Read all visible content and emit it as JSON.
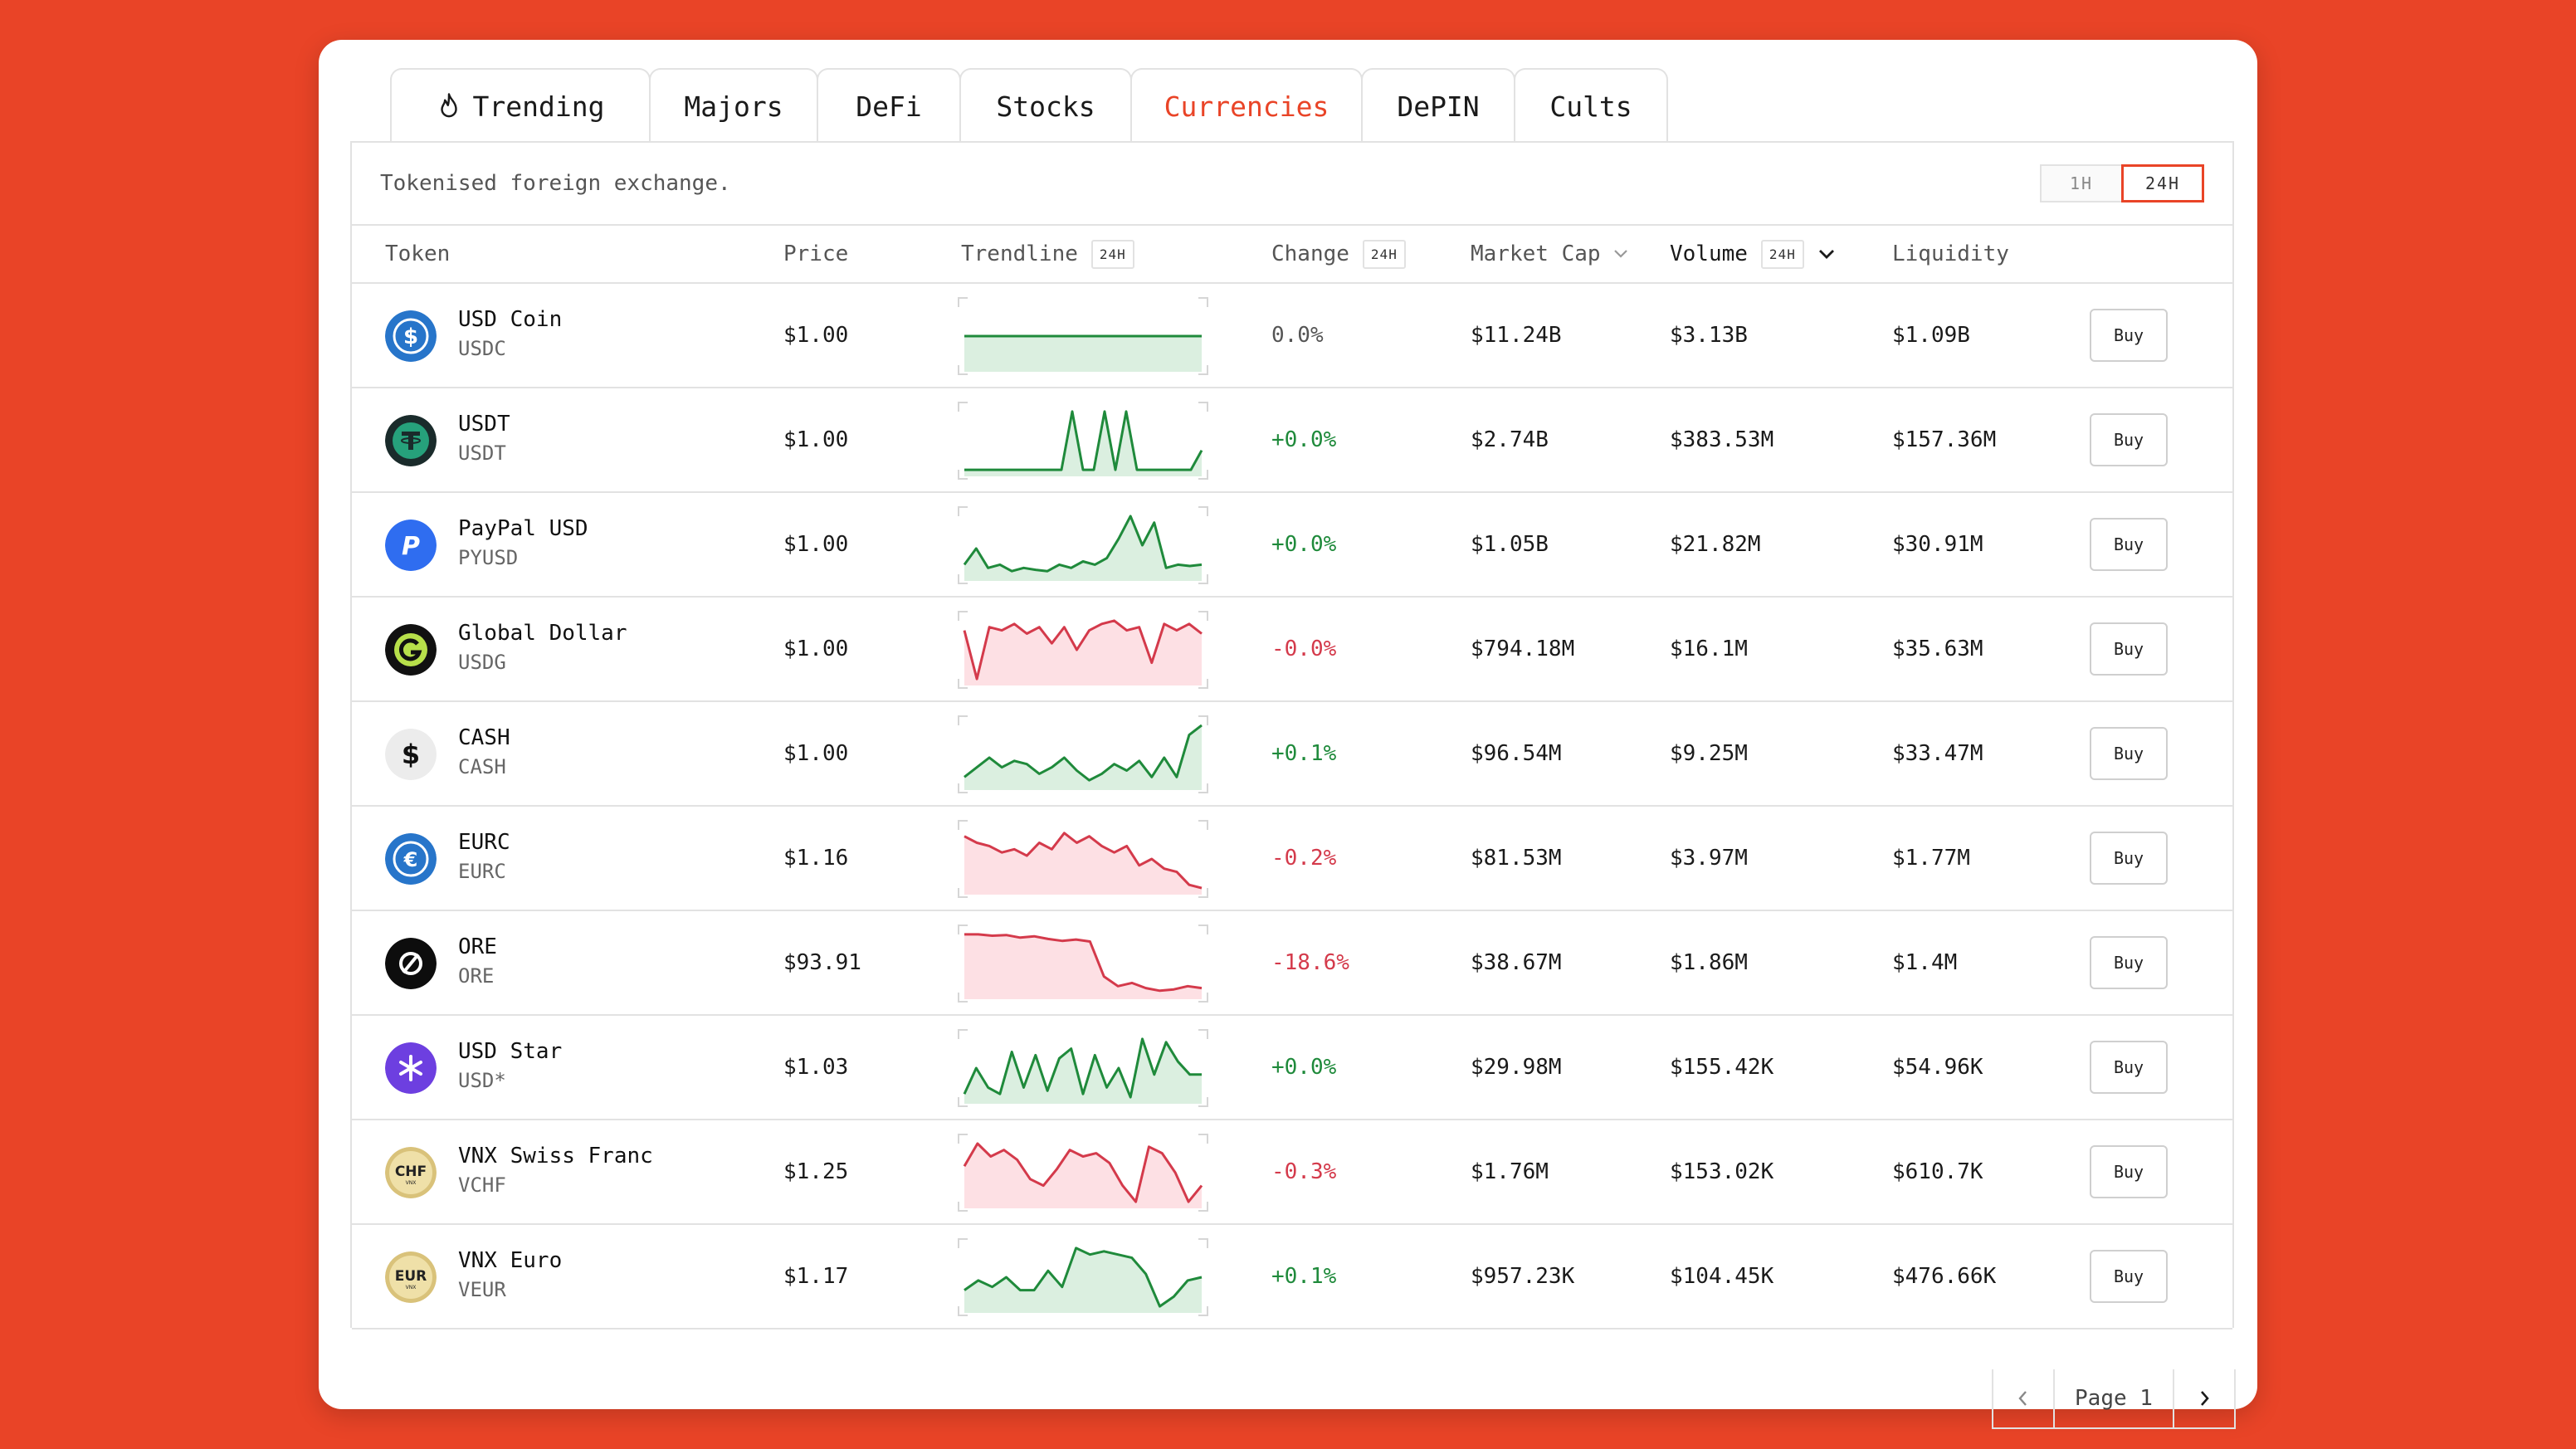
{
  "tabs": [
    {
      "label": "Trending",
      "icon": "flame-icon",
      "active": false
    },
    {
      "label": "Majors",
      "active": false
    },
    {
      "label": "DeFi",
      "active": false
    },
    {
      "label": "Stocks",
      "active": false
    },
    {
      "label": "Currencies",
      "active": true
    },
    {
      "label": "DePIN",
      "active": false
    },
    {
      "label": "Cults",
      "active": false
    }
  ],
  "subtitle": "Tokenised foreign exchange.",
  "timeframe": {
    "options": [
      "1H",
      "24H"
    ],
    "selected": "24H"
  },
  "columns": {
    "token": "Token",
    "price": "Price",
    "trendline": "Trendline",
    "trendline_badge": "24H",
    "change": "Change",
    "change_badge": "24H",
    "market_cap": "Market Cap",
    "volume": "Volume",
    "volume_badge": "24H",
    "liquidity": "Liquidity"
  },
  "buy_label": "Buy",
  "colors": {
    "accent": "#e94427",
    "positive": "#1f8a3b",
    "negative": "#d43a4b"
  },
  "rows": [
    {
      "name": "USD Coin",
      "symbol": "USDC",
      "icon": "usdc-icon",
      "price": "$1.00",
      "change": "0.0%",
      "trend": "flat",
      "market_cap": "$11.24B",
      "volume": "$3.13B",
      "liquidity": "$1.09B",
      "spark": [
        0.5,
        0.5,
        0.5,
        0.5,
        0.5,
        0.5,
        0.5,
        0.5,
        0.5,
        0.5,
        0.5,
        0.5
      ]
    },
    {
      "name": "USDT",
      "symbol": "USDT",
      "icon": "usdt-icon",
      "price": "$1.00",
      "change": "+0.0%",
      "trend": "up",
      "market_cap": "$2.74B",
      "volume": "$383.53M",
      "liquidity": "$157.36M",
      "spark": [
        0.05,
        0.05,
        0.05,
        0.05,
        0.05,
        0.05,
        0.05,
        0.05,
        0.05,
        0.05,
        0.95,
        0.05,
        0.05,
        0.95,
        0.05,
        0.95,
        0.05,
        0.05,
        0.05,
        0.05,
        0.05,
        0.05,
        0.35
      ]
    },
    {
      "name": "PayPal USD",
      "symbol": "PYUSD",
      "icon": "pyusd-icon",
      "price": "$1.00",
      "change": "+0.0%",
      "trend": "up",
      "market_cap": "$1.05B",
      "volume": "$21.82M",
      "liquidity": "$30.91M",
      "spark": [
        0.2,
        0.45,
        0.15,
        0.2,
        0.1,
        0.15,
        0.12,
        0.1,
        0.2,
        0.15,
        0.25,
        0.2,
        0.3,
        0.6,
        0.95,
        0.5,
        0.85,
        0.15,
        0.2,
        0.18,
        0.2
      ]
    },
    {
      "name": "Global Dollar",
      "symbol": "USDG",
      "icon": "usdg-icon",
      "price": "$1.00",
      "change": "-0.0%",
      "trend": "down",
      "market_cap": "$794.18M",
      "volume": "$16.1M",
      "liquidity": "$35.63M",
      "spark": [
        0.8,
        0.05,
        0.85,
        0.8,
        0.9,
        0.75,
        0.85,
        0.6,
        0.85,
        0.5,
        0.8,
        0.9,
        0.95,
        0.8,
        0.85,
        0.3,
        0.9,
        0.8,
        0.9,
        0.75
      ]
    },
    {
      "name": "CASH",
      "symbol": "CASH",
      "icon": "cash-icon",
      "price": "$1.00",
      "change": "+0.1%",
      "trend": "up",
      "market_cap": "$96.54M",
      "volume": "$9.25M",
      "liquidity": "$33.47M",
      "spark": [
        0.15,
        0.3,
        0.45,
        0.3,
        0.4,
        0.35,
        0.2,
        0.3,
        0.45,
        0.25,
        0.1,
        0.2,
        0.35,
        0.25,
        0.4,
        0.15,
        0.45,
        0.15,
        0.8,
        0.95
      ]
    },
    {
      "name": "EURC",
      "symbol": "EURC",
      "icon": "eurc-icon",
      "price": "$1.16",
      "change": "-0.2%",
      "trend": "down",
      "market_cap": "$81.53M",
      "volume": "$3.97M",
      "liquidity": "$1.77M",
      "spark": [
        0.85,
        0.75,
        0.7,
        0.6,
        0.65,
        0.55,
        0.75,
        0.65,
        0.9,
        0.75,
        0.85,
        0.7,
        0.6,
        0.7,
        0.4,
        0.5,
        0.35,
        0.3,
        0.1,
        0.05
      ]
    },
    {
      "name": "ORE",
      "symbol": "ORE",
      "icon": "ore-icon",
      "price": "$93.91",
      "change": "-18.6%",
      "trend": "down",
      "market_cap": "$38.67M",
      "volume": "$1.86M",
      "liquidity": "$1.4M",
      "spark": [
        0.95,
        0.95,
        0.93,
        0.94,
        0.9,
        0.92,
        0.88,
        0.85,
        0.87,
        0.84,
        0.3,
        0.15,
        0.2,
        0.12,
        0.08,
        0.1,
        0.15,
        0.12
      ]
    },
    {
      "name": "USD Star",
      "symbol": "USD*",
      "icon": "usd-star-icon",
      "price": "$1.03",
      "change": "+0.0%",
      "trend": "up",
      "market_cap": "$29.98M",
      "volume": "$155.42K",
      "liquidity": "$54.96K",
      "spark": [
        0.1,
        0.5,
        0.2,
        0.1,
        0.75,
        0.2,
        0.7,
        0.15,
        0.65,
        0.8,
        0.1,
        0.7,
        0.2,
        0.5,
        0.05,
        0.95,
        0.4,
        0.9,
        0.6,
        0.4,
        0.4
      ]
    },
    {
      "name": "VNX Swiss Franc",
      "symbol": "VCHF",
      "icon": "vchf-icon",
      "price": "$1.25",
      "change": "-0.3%",
      "trend": "down",
      "market_cap": "$1.76M",
      "volume": "$153.02K",
      "liquidity": "$610.7K",
      "spark": [
        0.6,
        0.95,
        0.75,
        0.85,
        0.7,
        0.4,
        0.3,
        0.55,
        0.85,
        0.75,
        0.8,
        0.65,
        0.3,
        0.05,
        0.9,
        0.8,
        0.5,
        0.05,
        0.3
      ]
    },
    {
      "name": "VNX Euro",
      "symbol": "VEUR",
      "icon": "veur-icon",
      "price": "$1.17",
      "change": "+0.1%",
      "trend": "up",
      "market_cap": "$957.23K",
      "volume": "$104.45K",
      "liquidity": "$476.66K",
      "spark": [
        0.3,
        0.45,
        0.35,
        0.5,
        0.3,
        0.3,
        0.6,
        0.35,
        0.95,
        0.85,
        0.9,
        0.85,
        0.8,
        0.55,
        0.05,
        0.2,
        0.45,
        0.5
      ]
    }
  ],
  "pagination": {
    "label": "Page 1"
  }
}
